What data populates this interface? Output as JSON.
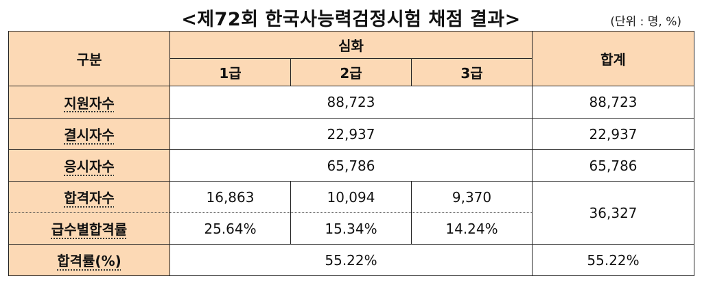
{
  "title": "<제72회 한국사능력검정시험 채점 결과>",
  "unit": "(단위 : 명, %)",
  "headers": {
    "category": "구분",
    "advanced": "심화",
    "grade1": "1급",
    "grade2": "2급",
    "grade3": "3급",
    "total": "합계"
  },
  "rows": {
    "applicants": {
      "label": "지원자수",
      "advanced": "88,723",
      "total": "88,723"
    },
    "absentees": {
      "label": "결시자수",
      "advanced": "22,937",
      "total": "22,937"
    },
    "examinees": {
      "label": "응시자수",
      "advanced": "65,786",
      "total": "65,786"
    },
    "passers": {
      "label": "합격자수",
      "grade1": "16,863",
      "grade2": "10,094",
      "grade3": "9,370",
      "total": "36,327"
    },
    "grade_pass_rate": {
      "label": "급수별합격률",
      "grade1": "25.64%",
      "grade2": "15.34%",
      "grade3": "14.24%"
    },
    "pass_rate": {
      "label": "합격률(%)",
      "advanced": "55.22%",
      "total": "55.22%"
    }
  }
}
